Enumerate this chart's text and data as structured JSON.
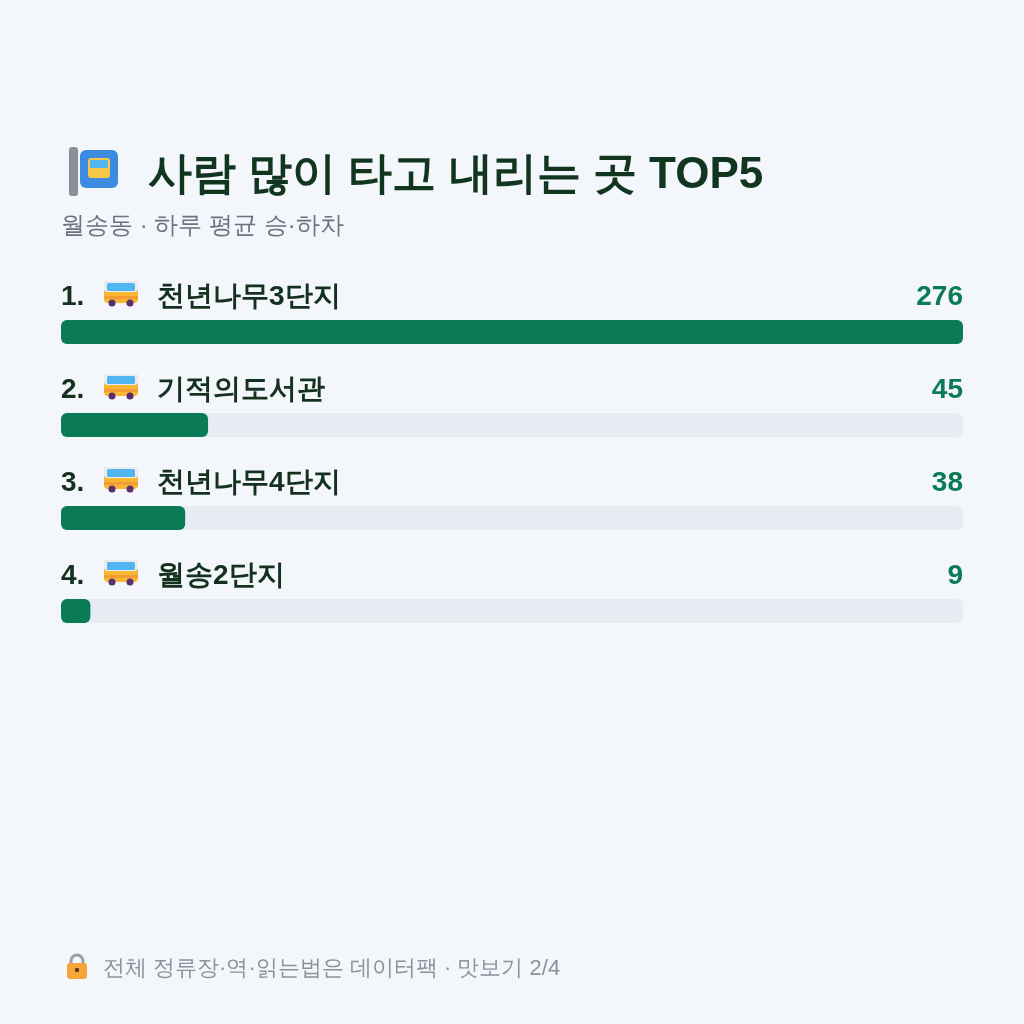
{
  "chart_data": {
    "type": "bar",
    "orientation": "horizontal",
    "title": "사람 많이 타고 내리는 곳 TOP5",
    "subtitle": "월송동 · 하루 평균 승·하차",
    "categories": [
      "1. 천년나무3단지",
      "2. 기적의도서관",
      "3. 천년나무4단지",
      "4. 월송2단지"
    ],
    "values": [
      276,
      45,
      38,
      9
    ],
    "color": "#0a7b55",
    "data_labels": true,
    "annotations": [
      "전체 정류장·역·읽는법은 데이터팩 · 맛보기 2/4"
    ]
  }
}
